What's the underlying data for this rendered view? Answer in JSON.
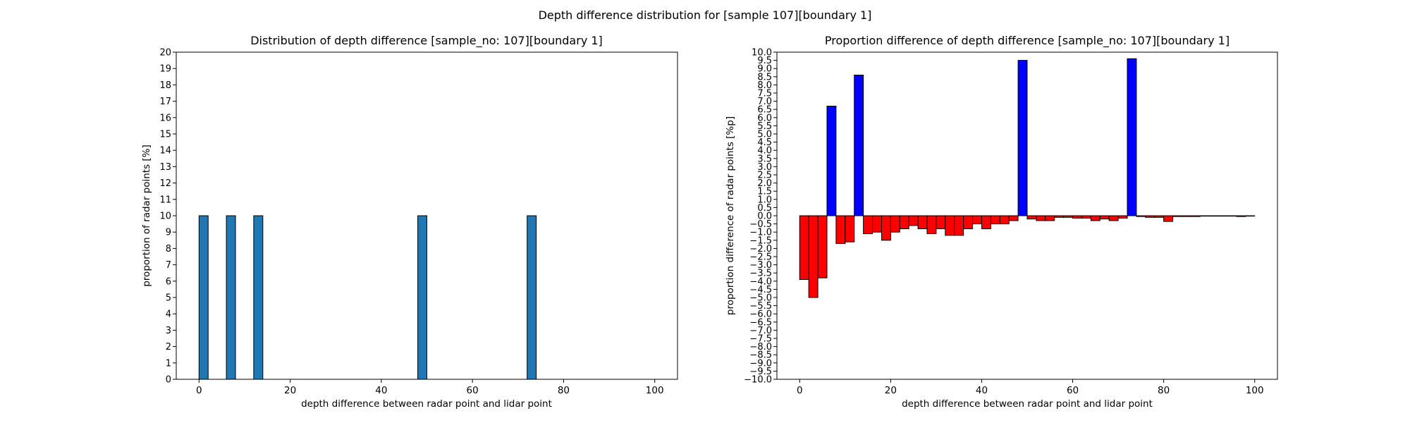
{
  "figure": {
    "suptitle": "Depth difference distribution for [sample 107][boundary 1]"
  },
  "chart_data": [
    {
      "type": "bar",
      "title": "Distribution of depth difference [sample_no: 107][boundary 1]",
      "xlabel": "depth difference between radar point and lidar point",
      "ylabel": "proportion of radar points [%]",
      "xlim": [
        -5,
        105
      ],
      "ylim": [
        0,
        20
      ],
      "xticks": [
        0,
        20,
        40,
        60,
        80,
        100
      ],
      "yticks": [
        0,
        1,
        2,
        3,
        4,
        5,
        6,
        7,
        8,
        9,
        10,
        11,
        12,
        13,
        14,
        15,
        16,
        17,
        18,
        19,
        20
      ],
      "bar_width": 2,
      "bar_color": "#1f77b4",
      "x": [
        1,
        7,
        13,
        49,
        73
      ],
      "values": [
        10,
        10,
        10,
        10,
        10
      ]
    },
    {
      "type": "bar",
      "title": "Proportion difference of depth difference [sample_no: 107][boundary 1]",
      "xlabel": "depth difference between radar point and lidar point",
      "ylabel": "proportion difference of radar points [%p]",
      "xlim": [
        -5,
        105
      ],
      "ylim": [
        -10,
        10
      ],
      "xticks": [
        0,
        20,
        40,
        60,
        80,
        100
      ],
      "yticks": [
        -10.0,
        -9.5,
        -9.0,
        -8.5,
        -8.0,
        -7.5,
        -7.0,
        -6.5,
        -6.0,
        -5.5,
        -5.0,
        -4.5,
        -4.0,
        -3.5,
        -3.0,
        -2.5,
        -2.0,
        -1.5,
        -1.0,
        -0.5,
        0.0,
        0.5,
        1.0,
        1.5,
        2.0,
        2.5,
        3.0,
        3.5,
        4.0,
        4.5,
        5.0,
        5.5,
        6.0,
        6.5,
        7.0,
        7.5,
        8.0,
        8.5,
        9.0,
        9.5,
        10.0
      ],
      "bar_width": 2,
      "positive_color": "#0000ff",
      "negative_color": "#ff0000",
      "x": [
        1,
        3,
        5,
        7,
        9,
        11,
        13,
        15,
        17,
        19,
        21,
        23,
        25,
        27,
        29,
        31,
        33,
        35,
        37,
        39,
        41,
        43,
        45,
        47,
        49,
        51,
        53,
        55,
        57,
        59,
        61,
        63,
        65,
        67,
        69,
        71,
        73,
        75,
        77,
        79,
        81,
        83,
        85,
        87,
        89,
        91,
        93,
        95,
        97,
        99
      ],
      "values": [
        -3.9,
        -5.0,
        -3.8,
        6.7,
        -1.7,
        -1.6,
        8.6,
        -1.1,
        -1.0,
        -1.5,
        -1.0,
        -0.8,
        -0.6,
        -0.8,
        -1.1,
        -0.8,
        -1.2,
        -1.2,
        -0.8,
        -0.5,
        -0.8,
        -0.5,
        -0.5,
        -0.3,
        9.5,
        -0.2,
        -0.3,
        -0.3,
        -0.1,
        -0.1,
        -0.15,
        -0.15,
        -0.3,
        -0.2,
        -0.3,
        -0.15,
        9.6,
        -0.05,
        -0.1,
        -0.1,
        -0.35,
        -0.05,
        -0.05,
        -0.05,
        -0.02,
        -0.02,
        -0.02,
        -0.02,
        -0.05,
        -0.02
      ]
    }
  ]
}
